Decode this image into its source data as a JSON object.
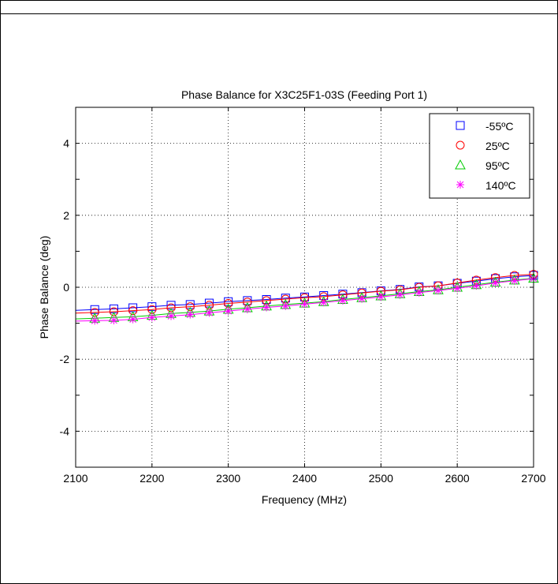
{
  "chart_data": {
    "type": "line",
    "title": "Phase Balance for X3C25F1-03S (Feeding Port 1)",
    "xlabel": "Frequency (MHz)",
    "ylabel": "Phase Balance (deg)",
    "xlim": [
      2100,
      2700
    ],
    "ylim": [
      -5,
      5
    ],
    "xticks": [
      2100,
      2200,
      2300,
      2400,
      2500,
      2600,
      2700
    ],
    "yticks": [
      -4,
      -2,
      0,
      2,
      4
    ],
    "grid": true,
    "legend_position": "top-right",
    "x": [
      2125,
      2150,
      2175,
      2200,
      2225,
      2250,
      2275,
      2300,
      2325,
      2350,
      2375,
      2400,
      2425,
      2450,
      2475,
      2500,
      2525,
      2550,
      2575,
      2600,
      2625,
      2650,
      2675,
      2700
    ],
    "series": [
      {
        "name": "-55ºC",
        "color": "#0000ff",
        "marker": "square",
        "values": [
          -0.62,
          -0.6,
          -0.57,
          -0.54,
          -0.5,
          -0.48,
          -0.44,
          -0.4,
          -0.37,
          -0.34,
          -0.3,
          -0.27,
          -0.23,
          -0.19,
          -0.15,
          -0.1,
          -0.06,
          0.01,
          0.04,
          0.11,
          0.17,
          0.24,
          0.29,
          0.33
        ]
      },
      {
        "name": "25ºC",
        "color": "#ff0000",
        "marker": "circle",
        "values": [
          -0.7,
          -0.68,
          -0.65,
          -0.62,
          -0.57,
          -0.54,
          -0.5,
          -0.45,
          -0.41,
          -0.37,
          -0.33,
          -0.29,
          -0.26,
          -0.21,
          -0.16,
          -0.11,
          -0.07,
          0.0,
          0.04,
          0.12,
          0.2,
          0.27,
          0.33,
          0.36
        ]
      },
      {
        "name": "95ºC",
        "color": "#00cc00",
        "marker": "triangle",
        "values": [
          -0.86,
          -0.84,
          -0.82,
          -0.78,
          -0.73,
          -0.7,
          -0.66,
          -0.61,
          -0.57,
          -0.52,
          -0.48,
          -0.44,
          -0.4,
          -0.34,
          -0.29,
          -0.24,
          -0.18,
          -0.12,
          -0.07,
          0.0,
          0.07,
          0.14,
          0.2,
          0.25
        ]
      },
      {
        "name": "140ºC",
        "color": "#ff00ff",
        "marker": "star",
        "values": [
          -0.93,
          -0.92,
          -0.89,
          -0.84,
          -0.8,
          -0.76,
          -0.71,
          -0.66,
          -0.61,
          -0.56,
          -0.52,
          -0.47,
          -0.42,
          -0.37,
          -0.32,
          -0.27,
          -0.21,
          -0.15,
          -0.09,
          -0.03,
          0.04,
          0.12,
          0.18,
          0.24
        ]
      }
    ]
  }
}
